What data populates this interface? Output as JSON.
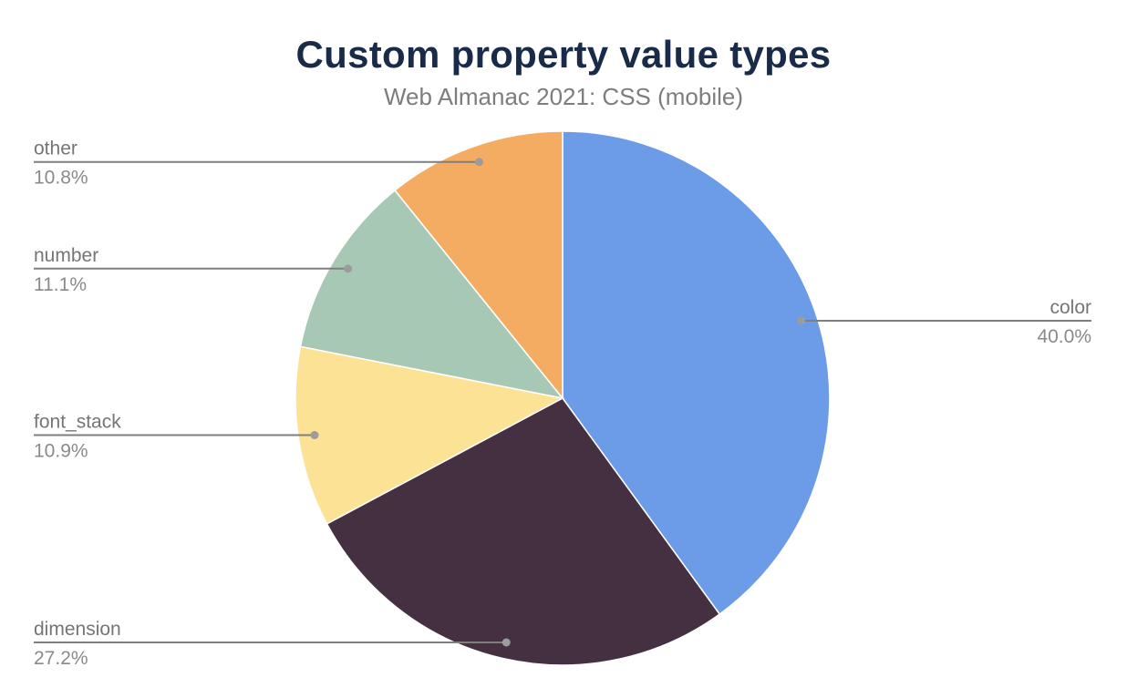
{
  "chart_data": {
    "type": "pie",
    "title": "Custom property value types",
    "subtitle": "Web Almanac 2021: CSS (mobile)",
    "start_angle_deg": 0,
    "direction": "clockwise",
    "legend": "none",
    "label_style": "leader-lines",
    "leader_line_color": "#7f7f7f",
    "leader_dot_color": "#9c9c9c",
    "label_text_color": "#757575",
    "title_color": "#1a2b49",
    "subtitle_color": "#7d7d7d",
    "slices": [
      {
        "label": "color",
        "value": 40.0,
        "display": "40.0%",
        "color": "#6c9be8",
        "side": "right"
      },
      {
        "label": "dimension",
        "value": 27.2,
        "display": "27.2%",
        "color": "#453041",
        "side": "left"
      },
      {
        "label": "font_stack",
        "value": 10.9,
        "display": "10.9%",
        "color": "#fce294",
        "side": "left"
      },
      {
        "label": "number",
        "value": 11.1,
        "display": "11.1%",
        "color": "#a8c8b6",
        "side": "left"
      },
      {
        "label": "other",
        "value": 10.8,
        "display": "10.8%",
        "color": "#f4ac62",
        "side": "left"
      }
    ]
  }
}
